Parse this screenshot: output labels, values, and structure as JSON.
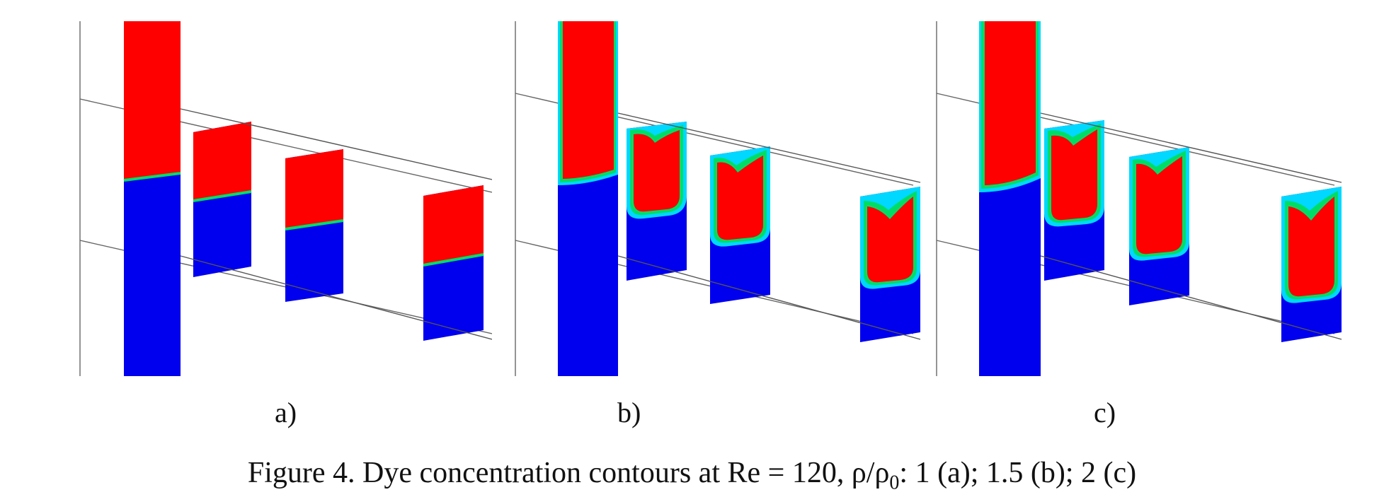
{
  "figure": {
    "panels": [
      {
        "id": "a",
        "label": "a)"
      },
      {
        "id": "b",
        "label": "b)"
      },
      {
        "id": "c",
        "label": "c)"
      }
    ],
    "caption": {
      "prefix": "Figure 4. Dye concentration contours at Re = 120, ρ/ρ",
      "subscript": "0",
      "suffix": ": 1 (a); 1.5 (b); 2 (c)"
    },
    "colors": {
      "dye_high": "#ff0000",
      "dye_low": "#0000ee",
      "interface_green": "#00dd66",
      "interface_cyan": "#00d8ff",
      "interface_yellow": "#ffd800",
      "frame_line": "#555555"
    }
  }
}
